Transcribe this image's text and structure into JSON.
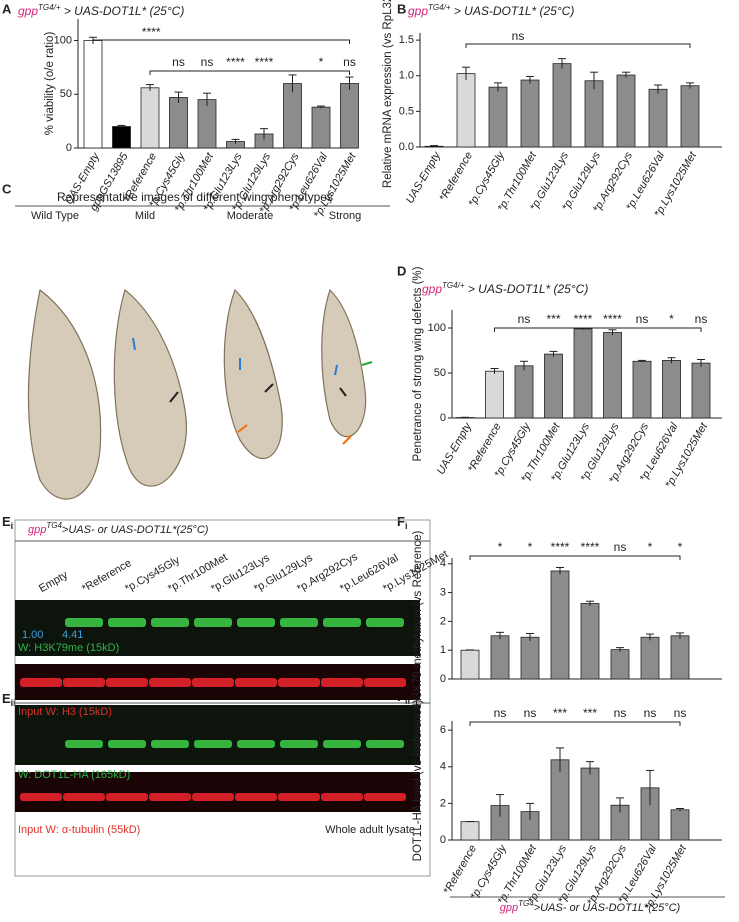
{
  "panel_labels": {
    "a": "A",
    "b": "B",
    "c": "C",
    "d": "D",
    "e": "E",
    "e_i": "i",
    "e_ii": "ii",
    "f": "F",
    "f_i": "i",
    "f_ii": "ii"
  },
  "wings": {
    "title": "Representative images of different wing phenotypes",
    "labels": [
      "Wild Type",
      "Mild",
      "Moderate",
      "Strong"
    ]
  },
  "blot": {
    "header": {
      "gene": "gpp",
      "sup": "TG4",
      "text": ">UAS- or UAS-DOT1L*(25°C)"
    },
    "lanes": [
      "Empty",
      "*Reference",
      "*p.Cys45Gly",
      "*p.Thr100Met",
      "*p.Glu123Lys",
      "*p.Glu129Lys",
      "*p.Arg292Cys",
      "*p.Leu626Val",
      "*p.Lys1025Met"
    ],
    "quant": [
      "1.00",
      "4.41"
    ],
    "rows": [
      "W: H3K79me (15kD)",
      "Input W: H3 (15kD)",
      "W: DOT1L-HA (165kD)",
      "Input W: α-tubulin (55kD)"
    ],
    "note": "Whole adult lysate"
  },
  "footer": {
    "gene": "gpp",
    "sup": "TG4",
    "text": ">UAS- or UAS-DOT1L*(25°C)"
  },
  "chart_data": [
    {
      "type": "bar",
      "title": {
        "gene": "gpp",
        "sup": "TG4/+",
        "text": " > UAS-DOT1L* (25°C)"
      },
      "ylabel": "% viability (o/e ratio)",
      "categories": [
        "UAS-Empty",
        "gppGS13895",
        "*Reference",
        "*p.Cys45Gly",
        "*p.Thr100Met",
        "*p.Glu123Lys",
        "*p.Glu129Lys",
        "*p.Arg292Cys",
        "*p.Leu626Val",
        "*p.Lys1025Met"
      ],
      "values": [
        100,
        20,
        56,
        47,
        45,
        6,
        13,
        60,
        38,
        60
      ],
      "errors": [
        3,
        1,
        3,
        5,
        6,
        2,
        5,
        8,
        1,
        6
      ],
      "colors": [
        "#ffffff",
        "#000000",
        "#d9d9d9",
        "#8c8c8c",
        "#8c8c8c",
        "#8c8c8c",
        "#8c8c8c",
        "#8c8c8c",
        "#8c8c8c",
        "#8c8c8c"
      ],
      "ylim": [
        0,
        120
      ],
      "yticks": [
        0,
        50,
        100
      ],
      "bracket_label": "****",
      "significance": [
        null,
        null,
        null,
        "ns",
        "ns",
        "****",
        "****",
        null,
        "*",
        "ns"
      ]
    },
    {
      "type": "bar",
      "title": {
        "gene": "gpp",
        "sup": "TG4/+",
        "text": " > UAS-DOT1L* (25°C)"
      },
      "ylabel": "Relative mRNA expression (vs RpL32)",
      "categories": [
        "UAS-Empty",
        "*Reference",
        "*p.Cys45Gly",
        "*p.Thr100Met",
        "*p.Glu123Lys",
        "*p.Glu129Lys",
        "*p.Arg292Cys",
        "*p.Leu626Val",
        "*p.Lys1025Met"
      ],
      "values": [
        0.01,
        1.03,
        0.84,
        0.94,
        1.17,
        0.93,
        1.01,
        0.81,
        0.86
      ],
      "errors": [
        0.01,
        0.09,
        0.06,
        0.05,
        0.07,
        0.12,
        0.04,
        0.06,
        0.04
      ],
      "colors": [
        "#ffffff",
        "#d9d9d9",
        "#8c8c8c",
        "#8c8c8c",
        "#8c8c8c",
        "#8c8c8c",
        "#8c8c8c",
        "#8c8c8c",
        "#8c8c8c"
      ],
      "ylim": [
        0,
        1.6
      ],
      "yticks": [
        {
          "value": 0,
          "label": "0.0"
        },
        0.5,
        {
          "value": 1,
          "label": "1.0"
        },
        1.5
      ],
      "bracket_label": "ns"
    },
    {
      "type": "bar",
      "title": {
        "gene": "gpp",
        "sup": "TG4/+",
        "text": " > UAS-DOT1L* (25°C)"
      },
      "ylabel": "Penetrance of strong wing defects (%)",
      "categories": [
        "UAS-Empty",
        "*Reference",
        "*p.Cys45Gly",
        "*p.Thr100Met",
        "*p.Glu123Lys",
        "*p.Glu129Lys",
        "*p.Arg292Cys",
        "*p.Leu626Val",
        "*p.Lys1025Met"
      ],
      "values": [
        0.5,
        52,
        58,
        71,
        99,
        95,
        63,
        64,
        61
      ],
      "errors": [
        0.3,
        3,
        5,
        3,
        1,
        3,
        1,
        3,
        4
      ],
      "colors": [
        "#ffffff",
        "#d9d9d9",
        "#8c8c8c",
        "#8c8c8c",
        "#8c8c8c",
        "#8c8c8c",
        "#8c8c8c",
        "#8c8c8c",
        "#8c8c8c"
      ],
      "ylim": [
        0,
        120
      ],
      "yticks": [
        0,
        50,
        100
      ],
      "significance": [
        null,
        null,
        "ns",
        "***",
        "****",
        "****",
        "ns",
        "*",
        "ns"
      ]
    },
    {
      "type": "bar",
      "ylabel": "H3K79 methylation (vs Reference)",
      "values": [
        1.0,
        1.5,
        1.45,
        3.75,
        2.62,
        1.02,
        1.45,
        1.5
      ],
      "errors": [
        0.01,
        0.12,
        0.13,
        0.12,
        0.08,
        0.07,
        0.11,
        0.1
      ],
      "colors": [
        "#d9d9d9",
        "#8c8c8c",
        "#8c8c8c",
        "#8c8c8c",
        "#8c8c8c",
        "#8c8c8c",
        "#8c8c8c",
        "#8c8c8c"
      ],
      "ylim": [
        0,
        4.2
      ],
      "yticks": [
        0,
        1,
        2,
        3,
        4
      ],
      "significance": [
        null,
        "*",
        "*",
        "****",
        "****",
        "ns",
        "*",
        "*"
      ]
    },
    {
      "type": "bar",
      "ylabel": "DOT1L-HA level (vs Reference)",
      "categories": [
        "*Reference",
        "*p.Cys45Gly",
        "*p.Thr100Met",
        "*p.Glu123Lys",
        "*p.Glu129Lys",
        "*p.Arg292Cys",
        "*p.Leu626Val",
        "*p.Lys1025Met"
      ],
      "values": [
        1.0,
        1.88,
        1.55,
        4.38,
        3.93,
        1.9,
        2.85,
        1.65
      ],
      "errors": [
        0.01,
        0.6,
        0.45,
        0.65,
        0.35,
        0.4,
        0.95,
        0.07
      ],
      "colors": [
        "#d9d9d9",
        "#8c8c8c",
        "#8c8c8c",
        "#8c8c8c",
        "#8c8c8c",
        "#8c8c8c",
        "#8c8c8c",
        "#8c8c8c"
      ],
      "ylim": [
        0,
        6.5
      ],
      "yticks": [
        0,
        2,
        4,
        6
      ],
      "significance": [
        null,
        "ns",
        "ns",
        "***",
        "***",
        "ns",
        "ns",
        "ns"
      ]
    }
  ]
}
